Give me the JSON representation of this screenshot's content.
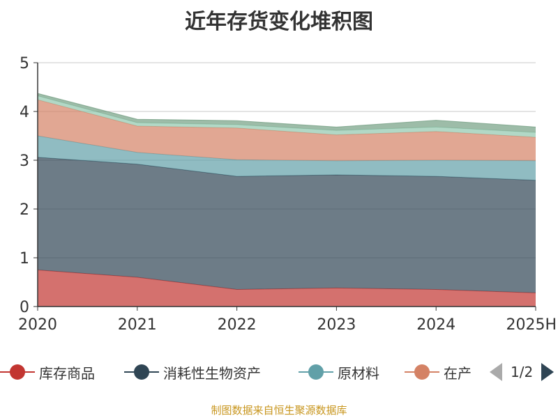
{
  "title": "近年存货变化堆积图",
  "source_note": "制图数据来自恒生聚源数据库",
  "pager": {
    "text": "1/2"
  },
  "chart_data": {
    "type": "area",
    "stacked": true,
    "title": "近年存货变化堆积图",
    "x": [
      "2020",
      "2021",
      "2022",
      "2023",
      "2024",
      "2025H"
    ],
    "ylim": [
      0,
      5
    ],
    "yticks": [
      0,
      1,
      2,
      3,
      4,
      5
    ],
    "grid": true,
    "legend_position": "bottom",
    "series": [
      {
        "name": "库存商品",
        "color": "#c23531",
        "values": [
          0.75,
          0.6,
          0.35,
          0.38,
          0.35,
          0.28
        ]
      },
      {
        "name": "消耗性生物资产",
        "color": "#2f4554",
        "values": [
          2.31,
          2.32,
          2.32,
          2.32,
          2.32,
          2.31
        ]
      },
      {
        "name": "原材料",
        "color": "#61a0a8",
        "values": [
          0.44,
          0.24,
          0.34,
          0.29,
          0.33,
          0.4
        ]
      },
      {
        "name": "在产",
        "color": "#d48265",
        "values": [
          0.74,
          0.54,
          0.65,
          0.53,
          0.59,
          0.48
        ]
      },
      {
        "name": "",
        "color": "#91c7ae",
        "values": [
          0.08,
          0.07,
          0.07,
          0.09,
          0.09,
          0.1
        ]
      },
      {
        "name": "",
        "color": "#749f83",
        "values": [
          0.05,
          0.07,
          0.08,
          0.07,
          0.14,
          0.11
        ]
      }
    ]
  }
}
